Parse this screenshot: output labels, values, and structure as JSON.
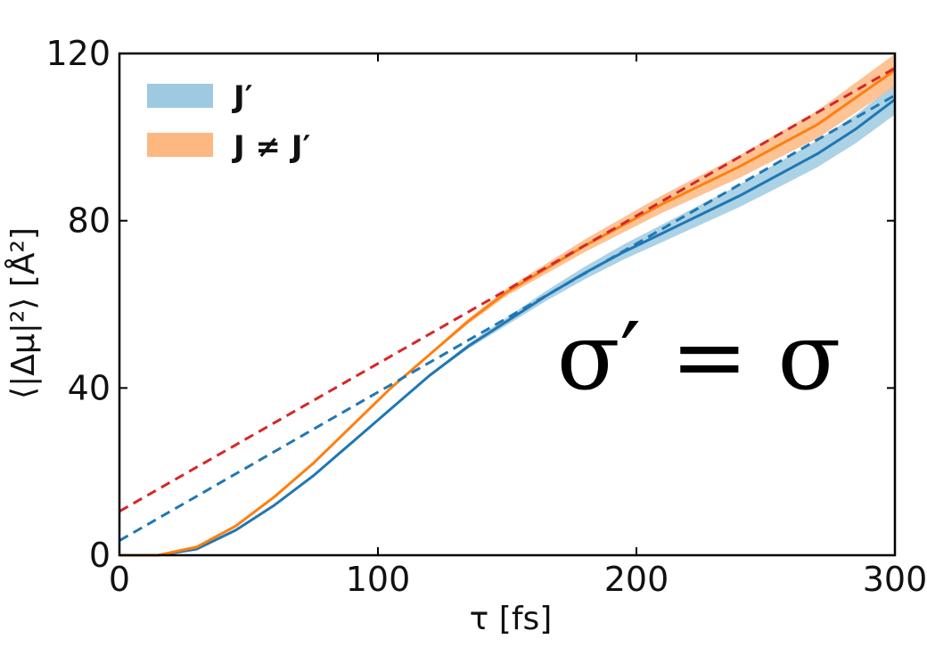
{
  "chart_data": {
    "type": "line",
    "title": "",
    "xlabel": "τ [fs]",
    "ylabel": "⟨|Δμ|²⟩ [Å²]",
    "xlim": [
      0,
      300
    ],
    "ylim": [
      0,
      120
    ],
    "xticks": [
      0,
      100,
      200,
      300
    ],
    "yticks": [
      0,
      40,
      80,
      120
    ],
    "grid": false,
    "legend_position": "top-left",
    "annotation": "σ′ = σ",
    "series": [
      {
        "name": "J′",
        "style": "solid-with-band",
        "color": "#1f77b4",
        "band_color": "#9ecae1",
        "x": [
          0,
          15,
          30,
          45,
          60,
          75,
          90,
          105,
          120,
          135,
          150,
          165,
          180,
          195,
          210,
          225,
          240,
          255,
          270,
          285,
          300
        ],
        "y": [
          0,
          0,
          1.5,
          6,
          12,
          19,
          27,
          35,
          43,
          50,
          56,
          62,
          67.5,
          72.5,
          77,
          81.5,
          86,
          91,
          96,
          102,
          109
        ],
        "band_halfwidth": [
          0,
          0,
          0,
          0,
          0,
          0,
          0,
          0,
          0.3,
          0.6,
          0.9,
          1.2,
          1.5,
          1.8,
          2.1,
          2.4,
          2.7,
          3.0,
          3.2,
          3.4,
          3.6
        ]
      },
      {
        "name": "J ≠ J′",
        "style": "solid-with-band",
        "color": "#ff7f0e",
        "band_color": "#fdb882",
        "x": [
          0,
          15,
          30,
          45,
          60,
          75,
          90,
          105,
          120,
          135,
          150,
          165,
          180,
          195,
          210,
          225,
          240,
          255,
          270,
          285,
          300
        ],
        "y": [
          0,
          0,
          2,
          7,
          14,
          22,
          31,
          40,
          48,
          56,
          63,
          68.5,
          74,
          79,
          84,
          88.5,
          93,
          98,
          103,
          109.5,
          116
        ],
        "band_halfwidth": [
          0,
          0,
          0,
          0,
          0,
          0,
          0,
          0,
          0.3,
          0.6,
          0.9,
          1.2,
          1.5,
          1.8,
          2.1,
          2.4,
          2.7,
          3.0,
          3.3,
          3.6,
          3.9
        ]
      },
      {
        "style": "dashed-fit",
        "color": "#1f77b4",
        "x": [
          0,
          300
        ],
        "y": [
          3.5,
          110
        ]
      },
      {
        "style": "dashed-fit",
        "color": "#d62728",
        "x": [
          0,
          300
        ],
        "y": [
          10.5,
          116.5
        ]
      }
    ]
  }
}
